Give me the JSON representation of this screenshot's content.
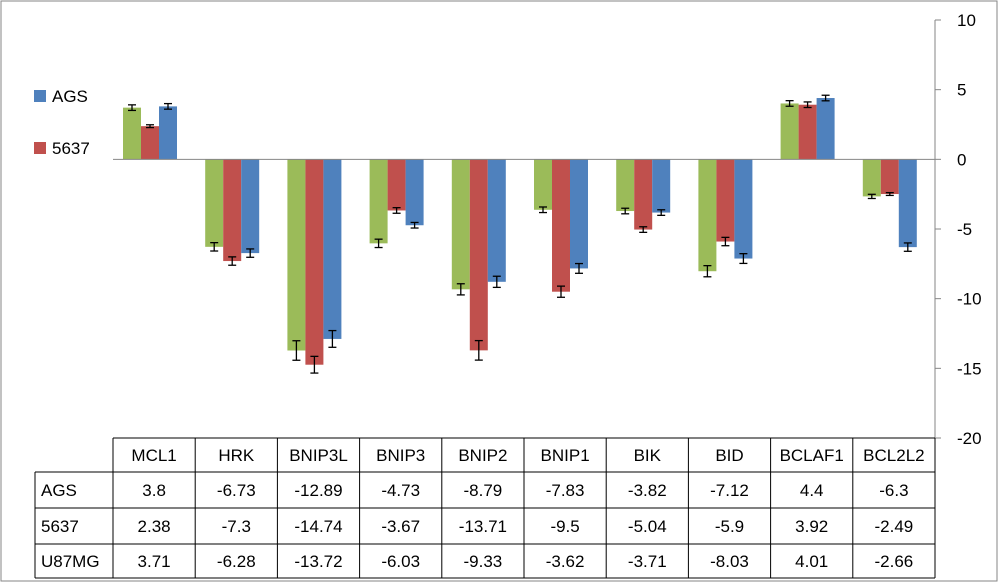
{
  "chart_data": {
    "type": "bar",
    "title": "",
    "categories": [
      "MCL1",
      "HRK",
      "BNIP3L",
      "BNIP3",
      "BNIP2",
      "BNIP1",
      "BIK",
      "BID",
      "BCLAF1",
      "BCL2L2"
    ],
    "series": [
      {
        "name": "U87MG",
        "color": "#9bbb59",
        "values": [
          3.71,
          -6.28,
          -13.72,
          -6.03,
          -9.33,
          -3.62,
          -3.71,
          -8.03,
          4.01,
          -2.66
        ],
        "errors": [
          0.2,
          0.3,
          0.7,
          0.3,
          0.4,
          0.2,
          0.2,
          0.4,
          0.2,
          0.15
        ]
      },
      {
        "name": "5637",
        "color": "#c0504d",
        "values": [
          2.38,
          -7.3,
          -14.74,
          -3.67,
          -13.71,
          -9.5,
          -5.04,
          -5.9,
          3.92,
          -2.49
        ],
        "errors": [
          0.1,
          0.3,
          0.6,
          0.2,
          0.7,
          0.4,
          0.2,
          0.3,
          0.2,
          0.1
        ]
      },
      {
        "name": "AGS",
        "color": "#4f81bd",
        "values": [
          3.8,
          -6.73,
          -12.89,
          -4.73,
          -8.79,
          -7.83,
          -3.82,
          -7.12,
          4.4,
          -6.3
        ],
        "errors": [
          0.2,
          0.3,
          0.6,
          0.2,
          0.4,
          0.35,
          0.2,
          0.35,
          0.2,
          0.3
        ]
      }
    ],
    "legend": {
      "placement": "left",
      "entries": [
        {
          "name": "AGS",
          "color": "#4f81bd"
        },
        {
          "name": "5637",
          "color": "#c0504d"
        }
      ]
    },
    "data_table": {
      "rows": [
        {
          "label": "AGS",
          "cells": [
            "3.8",
            "-6.73",
            "-12.89",
            "-4.73",
            "-8.79",
            "-7.83",
            "-3.82",
            "-7.12",
            "4.4",
            "-6.3"
          ]
        },
        {
          "label": "5637",
          "cells": [
            "2.38",
            "-7.3",
            "-14.74",
            "-3.67",
            "-13.71",
            "-9.5",
            "-5.04",
            "-5.9",
            "3.92",
            "-2.49"
          ]
        },
        {
          "label": "U87MG",
          "cells": [
            "3.71",
            "-6.28",
            "-13.72",
            "-6.03",
            "-9.33",
            "-3.62",
            "-3.71",
            "-8.03",
            "4.01",
            "-2.66"
          ]
        }
      ]
    },
    "y_axis": {
      "position": "right",
      "ylim": [
        -20,
        10
      ],
      "ticks": [
        10,
        5,
        0,
        -5,
        -10,
        -15,
        -20
      ]
    },
    "grid": false
  }
}
